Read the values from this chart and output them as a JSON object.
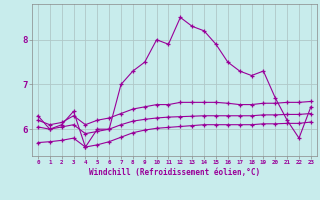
{
  "title": "",
  "xlabel": "Windchill (Refroidissement éolien,°C)",
  "ylabel": "",
  "bg_color": "#c8ecec",
  "grid_color": "#b0c8c8",
  "line_color": "#990099",
  "xlim": [
    -0.5,
    23.5
  ],
  "ylim": [
    5.4,
    8.8
  ],
  "xticks": [
    0,
    1,
    2,
    3,
    4,
    5,
    6,
    7,
    8,
    9,
    10,
    11,
    12,
    13,
    14,
    15,
    16,
    17,
    18,
    19,
    20,
    21,
    22,
    23
  ],
  "yticks": [
    6,
    7,
    8
  ],
  "series": [
    [
      6.3,
      6.0,
      6.1,
      6.4,
      5.6,
      6.0,
      6.0,
      7.0,
      7.3,
      7.5,
      8.0,
      7.9,
      8.5,
      8.3,
      8.2,
      7.9,
      7.5,
      7.3,
      7.2,
      7.3,
      6.7,
      6.2,
      5.8,
      6.5
    ],
    [
      6.2,
      6.1,
      6.15,
      6.3,
      6.1,
      6.2,
      6.25,
      6.35,
      6.45,
      6.5,
      6.55,
      6.55,
      6.6,
      6.6,
      6.6,
      6.6,
      6.58,
      6.55,
      6.55,
      6.58,
      6.58,
      6.6,
      6.6,
      6.62
    ],
    [
      6.05,
      6.0,
      6.05,
      6.1,
      5.9,
      5.95,
      6.0,
      6.1,
      6.18,
      6.22,
      6.25,
      6.27,
      6.28,
      6.29,
      6.3,
      6.3,
      6.3,
      6.3,
      6.3,
      6.32,
      6.32,
      6.33,
      6.33,
      6.35
    ],
    [
      5.7,
      5.72,
      5.75,
      5.8,
      5.6,
      5.65,
      5.72,
      5.82,
      5.92,
      5.98,
      6.02,
      6.04,
      6.06,
      6.08,
      6.1,
      6.1,
      6.1,
      6.1,
      6.1,
      6.12,
      6.12,
      6.13,
      6.13,
      6.16
    ]
  ]
}
